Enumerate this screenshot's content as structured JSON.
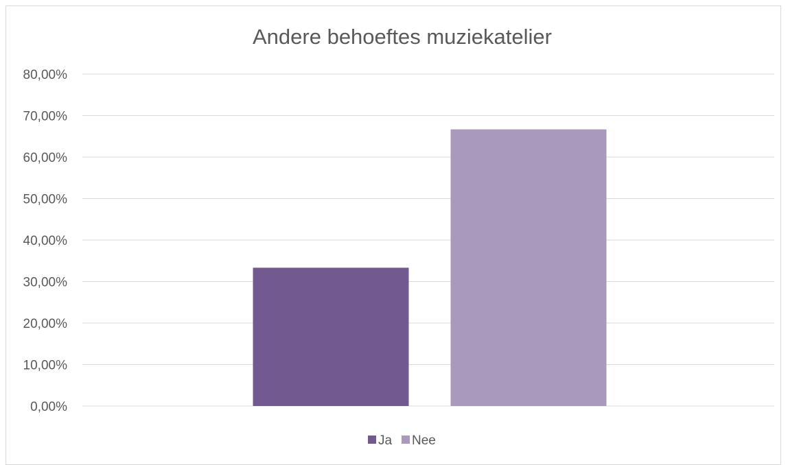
{
  "chart_data": {
    "type": "bar",
    "title": "Andere behoeftes muziekatelier",
    "categories": [
      "Ja",
      "Nee"
    ],
    "values": [
      33.33,
      66.67
    ],
    "colors": [
      "#725a91",
      "#a899bd"
    ],
    "ylim": [
      0,
      80
    ],
    "y_ticks": [
      "0,00%",
      "10,00%",
      "20,00%",
      "30,00%",
      "40,00%",
      "50,00%",
      "60,00%",
      "70,00%",
      "80,00%"
    ],
    "grid": true,
    "legend": {
      "position": "bottom",
      "entries": [
        "Ja",
        "Nee"
      ]
    },
    "xlabel": "",
    "ylabel": ""
  }
}
